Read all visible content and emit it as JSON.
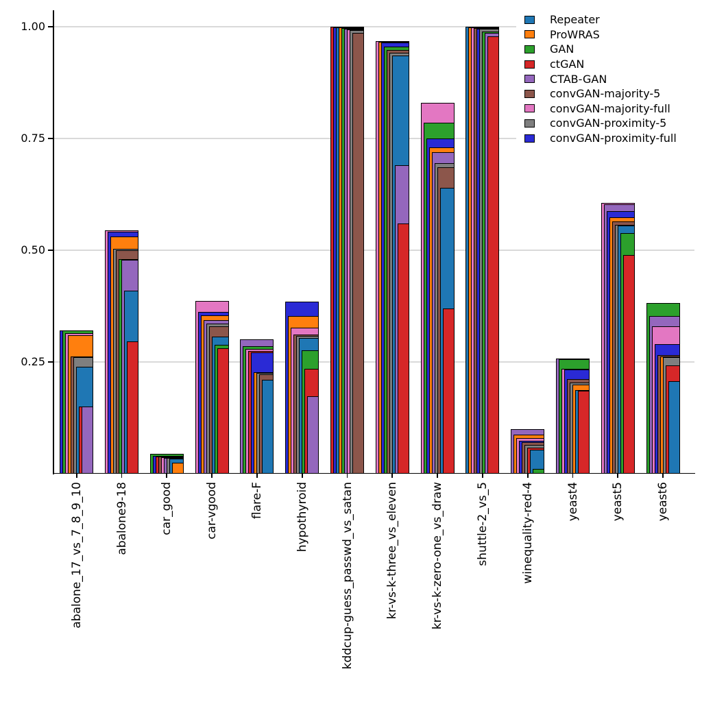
{
  "figure": {
    "background": "#ffffff",
    "grid_color": "#d9d9d9",
    "axis_color": "#000000",
    "bar_outline_color": "#000000"
  },
  "y_axis": {
    "ticks": [
      {
        "label": "0.25",
        "value": 0.25
      },
      {
        "label": "0.50",
        "value": 0.5
      },
      {
        "label": "0.75",
        "value": 0.75
      },
      {
        "label": "1.00",
        "value": 1.0
      }
    ]
  },
  "chart_data": {
    "type": "bar",
    "variant": "overlapping-nested-bars, per category sorted tallest-to-shortest, right-aligned, taller bars wider and drawn behind",
    "title": "",
    "xlabel": "",
    "ylabel": "",
    "ylim": [
      0,
      1.04
    ],
    "grid": true,
    "legend_position": "upper right",
    "categories": [
      "abalone_17_vs_7_8_9_10",
      "abalone9-18",
      "car_good",
      "car-vgood",
      "flare-F",
      "hypothyroid",
      "kddcup-guess_passwd_vs_satan",
      "kr-vs-k-three_vs_eleven",
      "kr-vs-k-zero-one_vs_draw",
      "shuttle-2_vs_5",
      "winequality-red-4",
      "yeast4",
      "yeast5",
      "yeast6"
    ],
    "series": [
      {
        "name": "Repeater",
        "color": "#1f77b4",
        "values": [
          0.24,
          0.41,
          0.033,
          0.307,
          0.21,
          0.304,
          0.998,
          0.936,
          0.64,
          1.0,
          0.054,
          0.187,
          0.555,
          0.207
        ]
      },
      {
        "name": "ProWRAS",
        "color": "#ff7f0e",
        "values": [
          0.31,
          0.53,
          0.025,
          0.355,
          0.227,
          0.353,
          0.998,
          0.966,
          0.73,
          0.999,
          0.087,
          0.2,
          0.574,
          0.263
        ]
      },
      {
        "name": "GAN",
        "color": "#2ca02c",
        "values": [
          0.32,
          0.48,
          0.044,
          0.289,
          0.285,
          0.276,
          0.997,
          0.955,
          0.785,
          0.99,
          0.01,
          0.256,
          0.538,
          0.382
        ]
      },
      {
        "name": "ctGAN",
        "color": "#d62728",
        "values": [
          0.151,
          0.296,
          0.039,
          0.28,
          0.275,
          0.234,
          1.0,
          0.56,
          0.37,
          0.979,
          0.059,
          0.186,
          0.489,
          0.242
        ]
      },
      {
        "name": "CTAB-GAN",
        "color": "#9467bd",
        "values": [
          0.151,
          0.478,
          0.036,
          0.343,
          0.301,
          0.173,
          0.996,
          0.69,
          0.72,
          0.986,
          0.099,
          0.258,
          0.602,
          0.353
        ]
      },
      {
        "name": "convGAN-majority-5",
        "color": "#8c564b",
        "values": [
          0.263,
          0.5,
          0.038,
          0.329,
          0.222,
          0.311,
          0.986,
          0.948,
          0.685,
          0.997,
          0.07,
          0.212,
          0.564,
          0.266
        ]
      },
      {
        "name": "convGAN-majority-full",
        "color": "#e377c2",
        "values": [
          0.314,
          0.545,
          0.037,
          0.386,
          0.279,
          0.327,
          0.994,
          0.968,
          0.83,
          0.998,
          0.08,
          0.234,
          0.606,
          0.329
        ]
      },
      {
        "name": "convGAN-proximity-5",
        "color": "#7f7f7f",
        "values": [
          0.261,
          0.503,
          0.035,
          0.336,
          0.225,
          0.308,
          0.992,
          0.942,
          0.695,
          0.995,
          0.065,
          0.204,
          0.557,
          0.26
        ]
      },
      {
        "name": "convGAN-proximity-full",
        "color": "#2a2ad5",
        "values": [
          0.321,
          0.541,
          0.04,
          0.362,
          0.271,
          0.385,
          0.999,
          0.965,
          0.75,
          0.996,
          0.073,
          0.233,
          0.588,
          0.29
        ]
      }
    ]
  }
}
